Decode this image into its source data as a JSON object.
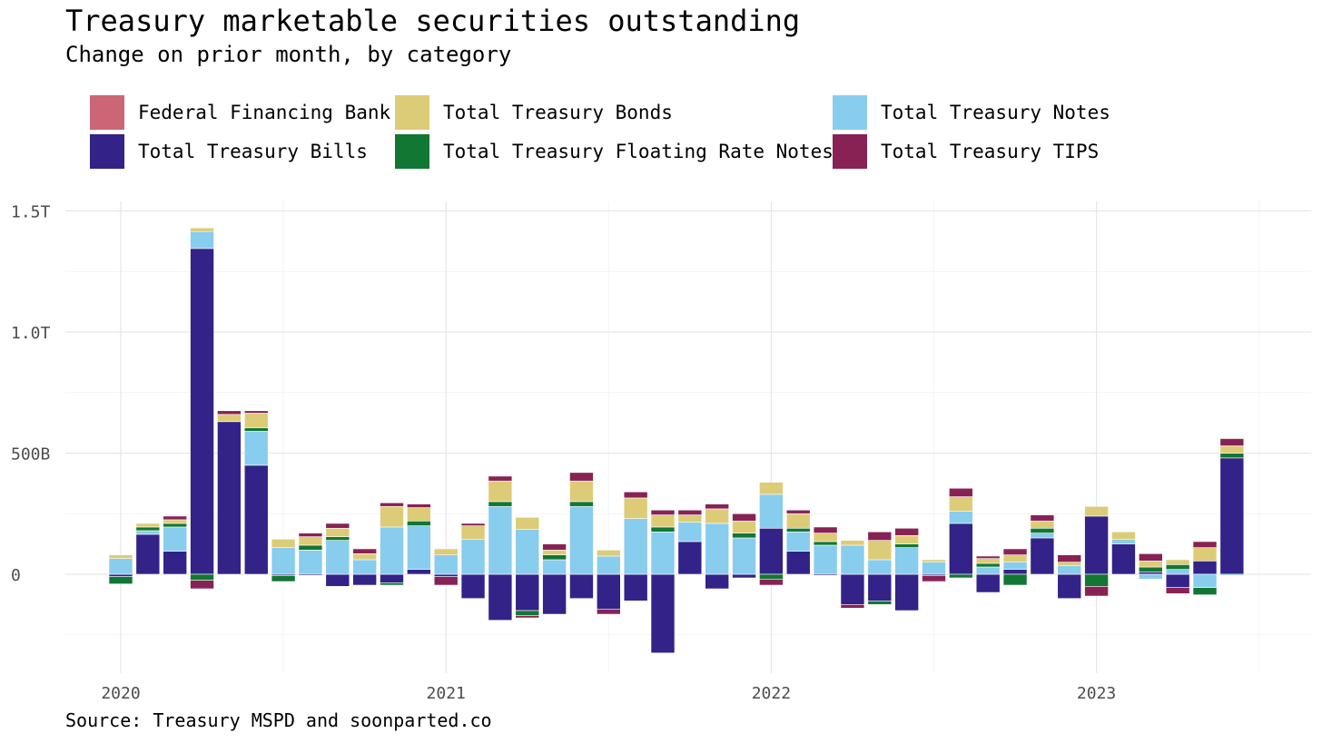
{
  "chart_data": {
    "type": "bar",
    "stacked": true,
    "title": "Treasury marketable securities outstanding",
    "subtitle": "Change on prior month, by category",
    "source": "Source: Treasury MSPD and soonparted.co",
    "xlabel": "",
    "ylabel": "",
    "ylim": [
      -400,
      1500
    ],
    "y_ticks": [
      {
        "value": 0,
        "label": "0"
      },
      {
        "value": 500,
        "label": "500B"
      },
      {
        "value": 1000,
        "label": "1.0T"
      },
      {
        "value": 1500,
        "label": "1.5T"
      }
    ],
    "x_ticks": [
      {
        "label": "2020",
        "month_index": 0
      },
      {
        "label": "2021",
        "month_index": 12
      },
      {
        "label": "2022",
        "month_index": 24
      },
      {
        "label": "2023",
        "month_index": 36
      }
    ],
    "grid": true,
    "legend_position": "top",
    "categories": [
      "2020-01",
      "2020-02",
      "2020-03",
      "2020-04",
      "2020-05",
      "2020-06",
      "2020-07",
      "2020-08",
      "2020-09",
      "2020-10",
      "2020-11",
      "2020-12",
      "2021-01",
      "2021-02",
      "2021-03",
      "2021-04",
      "2021-05",
      "2021-06",
      "2021-07",
      "2021-08",
      "2021-09",
      "2021-10",
      "2021-11",
      "2021-12",
      "2022-01",
      "2022-02",
      "2022-03",
      "2022-04",
      "2022-05",
      "2022-06",
      "2022-07",
      "2022-08",
      "2022-09",
      "2022-10",
      "2022-11",
      "2022-12",
      "2023-01",
      "2023-02",
      "2023-03",
      "2023-04",
      "2023-05",
      "2023-06"
    ],
    "series": [
      {
        "name": "Federal Financing Bank",
        "color": "#CC6677",
        "values": [
          0,
          0,
          0,
          0,
          0,
          0,
          0,
          0,
          0,
          0,
          0,
          0,
          0,
          0,
          0,
          0,
          0,
          0,
          0,
          0,
          0,
          0,
          0,
          0,
          0,
          0,
          0,
          0,
          0,
          0,
          0,
          0,
          0,
          0,
          0,
          0,
          0,
          0,
          0,
          0,
          0,
          0
        ]
      },
      {
        "name": "Total Treasury Bills",
        "color": "#332288",
        "values": [
          -10,
          165,
          95,
          1345,
          630,
          450,
          -5,
          -5,
          -50,
          -45,
          -35,
          20,
          -10,
          -100,
          -190,
          -150,
          -165,
          -100,
          -145,
          -110,
          -325,
          135,
          -60,
          -15,
          190,
          95,
          -5,
          -125,
          -110,
          -150,
          -5,
          210,
          -75,
          20,
          150,
          -100,
          240,
          125,
          10,
          -55,
          55,
          480
        ]
      },
      {
        "name": "Total Treasury Notes",
        "color": "#88CCEE",
        "values": [
          65,
          15,
          100,
          70,
          0,
          140,
          110,
          100,
          140,
          60,
          195,
          180,
          80,
          145,
          280,
          185,
          60,
          280,
          75,
          230,
          175,
          80,
          210,
          150,
          140,
          80,
          120,
          120,
          60,
          110,
          50,
          50,
          30,
          30,
          20,
          35,
          0,
          20,
          -20,
          20,
          -55,
          -5
        ]
      },
      {
        "name": "Total Treasury Floating Rate Notes",
        "color": "#117733",
        "values": [
          -30,
          15,
          15,
          -25,
          0,
          15,
          -25,
          20,
          15,
          0,
          -10,
          20,
          0,
          0,
          20,
          -20,
          20,
          20,
          0,
          0,
          20,
          0,
          0,
          20,
          -20,
          15,
          15,
          0,
          -15,
          15,
          0,
          -15,
          15,
          -45,
          20,
          0,
          -50,
          0,
          20,
          20,
          -30,
          20
        ]
      },
      {
        "name": "Total Treasury Bonds",
        "color": "#DDCC77",
        "values": [
          15,
          15,
          15,
          15,
          30,
          60,
          35,
          35,
          35,
          25,
          85,
          55,
          25,
          55,
          85,
          50,
          20,
          85,
          25,
          85,
          50,
          30,
          60,
          50,
          50,
          60,
          35,
          20,
          80,
          35,
          10,
          60,
          20,
          30,
          30,
          15,
          40,
          30,
          25,
          20,
          55,
          30
        ]
      },
      {
        "name": "Total Treasury TIPS",
        "color": "#882255",
        "values": [
          0,
          0,
          15,
          -35,
          15,
          10,
          0,
          15,
          20,
          20,
          15,
          15,
          -35,
          10,
          20,
          -10,
          25,
          35,
          -20,
          25,
          20,
          20,
          20,
          30,
          -25,
          15,
          25,
          -15,
          35,
          30,
          -25,
          35,
          10,
          25,
          25,
          30,
          -40,
          0,
          30,
          -25,
          25,
          30
        ]
      }
    ]
  }
}
